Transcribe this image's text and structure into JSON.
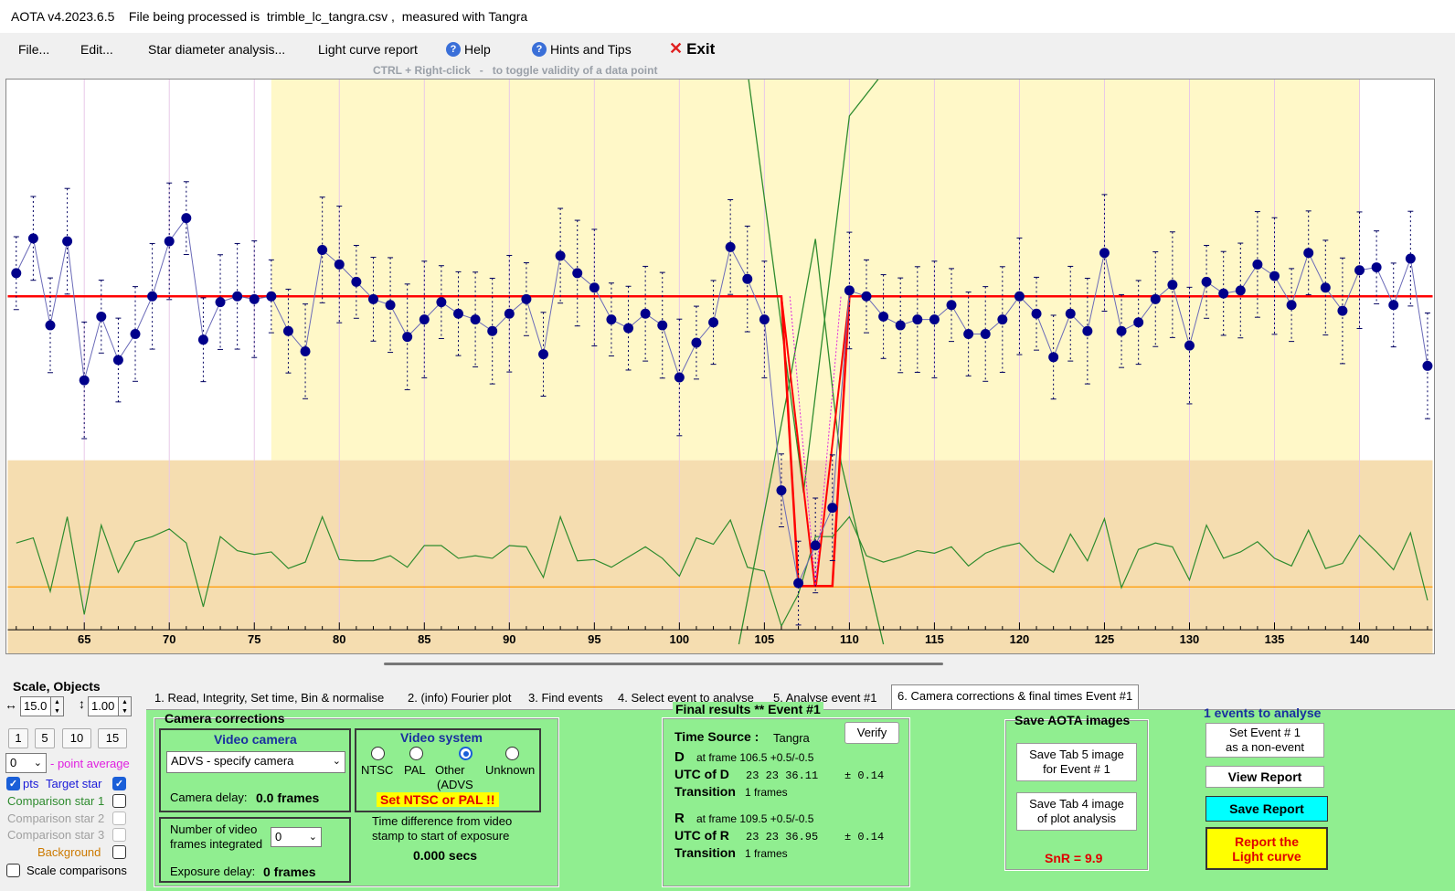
{
  "titlebar": {
    "title": "AOTA v4.2023.6.5    File being processed is  trimble_lc_tangra.csv ,  measured with Tangra"
  },
  "menu": {
    "file": "File...",
    "edit": "Edit...",
    "star_diameter": "Star diameter analysis...",
    "light_curve_report": "Light curve report",
    "help": "Help",
    "hints": "Hints and Tips",
    "exit": "Exit",
    "hint_text": "CTRL + Right-click   -   to toggle validity of a data point"
  },
  "chart_data": {
    "type": "line",
    "x_ticks": [
      65,
      70,
      75,
      80,
      85,
      90,
      95,
      100,
      105,
      110,
      115,
      120,
      125,
      130,
      135,
      140
    ],
    "xlim": [
      60.5,
      144.3
    ],
    "ylim": [
      -1.05,
      1.3
    ],
    "series": [
      {
        "x": [
          61,
          62,
          63,
          64,
          65,
          66,
          67,
          68,
          69,
          70,
          71,
          72,
          73,
          74,
          75,
          76,
          77,
          78,
          79,
          80,
          81,
          82,
          83,
          84,
          85,
          86,
          87,
          88,
          89,
          90,
          91,
          92,
          93,
          94,
          95,
          96,
          97,
          98,
          99,
          100,
          101,
          102,
          103,
          104,
          105,
          106,
          107,
          108,
          109,
          110,
          111,
          112,
          113,
          114,
          115,
          116,
          117,
          118,
          119,
          120,
          121,
          122,
          123,
          124,
          125,
          126,
          127,
          128,
          129,
          130,
          131,
          132,
          133,
          134,
          135,
          136,
          137,
          138,
          139,
          140,
          141,
          142,
          143,
          144
        ],
        "y": [
          0.08,
          0.2,
          -0.1,
          0.19,
          -0.29,
          -0.07,
          -0.22,
          -0.13,
          0.0,
          0.19,
          0.27,
          -0.15,
          -0.02,
          0.0,
          -0.01,
          0.0,
          -0.12,
          -0.19,
          0.16,
          0.11,
          0.05,
          -0.01,
          -0.03,
          -0.14,
          -0.08,
          -0.02,
          -0.06,
          -0.08,
          -0.12,
          -0.06,
          -0.01,
          -0.2,
          0.14,
          0.08,
          0.03,
          -0.08,
          -0.11,
          -0.06,
          -0.1,
          -0.28,
          -0.16,
          -0.09,
          0.17,
          0.06,
          -0.08,
          -0.67,
          -0.99,
          -0.86,
          -0.73,
          0.02,
          0.0,
          -0.07,
          -0.1,
          -0.08,
          -0.08,
          -0.03,
          -0.13,
          -0.13,
          -0.08,
          0.0,
          -0.06,
          -0.21,
          -0.06,
          -0.12,
          0.15,
          -0.12,
          -0.09,
          -0.01,
          0.04,
          -0.17,
          0.05,
          0.01,
          0.02,
          0.11,
          0.07,
          -0.03,
          0.15,
          0.03,
          -0.05,
          0.09,
          0.1,
          -0.03,
          0.13,
          -0.24
        ]
      }
    ],
    "model_fit": {
      "baseline": 0.0,
      "bottom": -1.0,
      "d_frame": 106.5,
      "r_frame": 109.5
    }
  },
  "left": {
    "title": "Scale,  Objects",
    "scale_x": "15.0",
    "scale_y": "1.00",
    "scale_buttons": [
      "1",
      "5",
      "10",
      "15"
    ],
    "point_avg_value": "0",
    "point_avg_label": "- point average",
    "pts": "pts",
    "target_star": "Target star",
    "comp1": "Comparison star 1",
    "comp2": "Comparison star 2",
    "comp3": "Comparison star 3",
    "background": "Background",
    "scale_comparisons": "Scale comparisons"
  },
  "tabs": [
    "1.  Read, Integrity, Set time, Bin & normalise",
    "2. (info)  Fourier plot",
    "3. Find events",
    "4. Select event to analyse",
    "5. Analyse event #1",
    "6. Camera corrections & final times Event #1"
  ],
  "camera": {
    "title": "Camera corrections",
    "video_camera": "Video camera",
    "camera_value": "ADVS - specify camera",
    "camera_delay_label": "Camera delay:",
    "camera_delay_value": "0.0 frames",
    "video_system": "Video system",
    "ntsc": "NTSC",
    "pal": "PAL",
    "other": "Other",
    "other2": "(ADVS",
    "unknown": "Unknown",
    "set_ntsc": "Set NTSC or PAL !!",
    "frames_integrated_label1": "Number of video",
    "frames_integrated_label2": "frames integrated",
    "frames_integrated_value": "0",
    "exposure_delay_label": "Exposure delay:",
    "exposure_delay_value": "0 frames",
    "time_diff1": "Time difference from video",
    "time_diff2": "stamp to start of exposure",
    "time_diff_value": "0.000 secs"
  },
  "results": {
    "title": "Final results  **  Event #1",
    "time_source_label": "Time Source :",
    "time_source_value": "Tangra",
    "verify": "Verify",
    "d_label": "D",
    "d_frame": "at frame 106.5  +0.5/-0.5",
    "utc_d_label": "UTC of D",
    "utc_d_value": "23 23 36.11",
    "utc_d_err": "± 0.14",
    "transition_label": "Transition",
    "d_transition": "1 frames",
    "r_label": "R",
    "r_frame": "at frame 109.5  +0.5/-0.5",
    "utc_r_label": "UTC of R",
    "utc_r_value": "23 23 36.95",
    "utc_r_err": "± 0.14",
    "r_transition": "1 frames"
  },
  "save": {
    "title": "Save AOTA images",
    "tab5_1": "Save Tab 5 image",
    "tab5_2": "for Event # 1",
    "tab4_1": "Save Tab 4 image",
    "tab4_2": "of plot analysis",
    "snr": "SnR = 9.9"
  },
  "events": {
    "title": "1 events to analyse",
    "nonevent_1": "Set Event # 1",
    "nonevent_2": "as a non-event",
    "view_report": "View Report",
    "save_report": "Save Report",
    "report_1": "Report the",
    "report_2": "Light curve"
  },
  "colors": {
    "plot_yellow": "#fff8c8",
    "plot_tan": "#f5ddb0",
    "target": "#00008b",
    "fit": "#ff0000",
    "comparison": "#2e8b2e",
    "background_line": "#ff9900",
    "panel_green": "#90ee90"
  }
}
